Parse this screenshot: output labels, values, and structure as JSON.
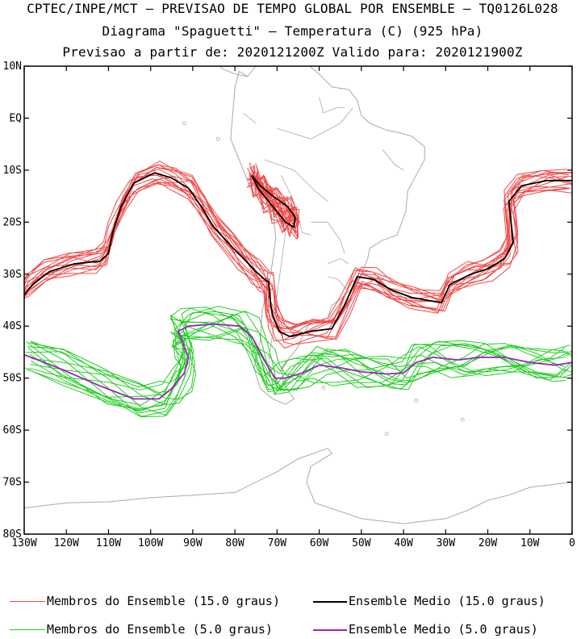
{
  "title": {
    "line1": "CPTEC/INPE/MCT – PREVISAO DE TEMPO GLOBAL POR ENSEMBLE – TQ0126L028",
    "line2": "Diagrama \"Spaguetti\" – Temperatura (C) (925 hPa)",
    "line3": "Previsao a partir de: 2020121200Z  Valido para: 2020121900Z"
  },
  "map": {
    "lon_range": [
      -130,
      0
    ],
    "lat_range": [
      -80,
      10
    ],
    "lon_ticks": [
      "130W",
      "120W",
      "110W",
      "100W",
      "90W",
      "80W",
      "70W",
      "60W",
      "50W",
      "40W",
      "30W",
      "20W",
      "10W",
      "0"
    ],
    "lat_ticks": [
      "10N",
      "EQ",
      "10S",
      "20S",
      "30S",
      "40S",
      "50S",
      "60S",
      "70S",
      "80S"
    ],
    "coastline_color": "#a9a9a9"
  },
  "colors": {
    "members_15": "#f04848",
    "mean_15": "#000000",
    "members_5": "#22cc22",
    "mean_5": "#a020c0"
  },
  "legend": {
    "members_15_label": "Membros do Ensemble (15.0 graus)",
    "mean_15_label": "Ensemble Medio (15.0 graus)",
    "members_5_label": "Membros do Ensemble (5.0 graus)",
    "mean_5_label": "Ensemble Medio (5.0 graus)"
  },
  "chart_data": {
    "type": "line",
    "contours": [
      {
        "series": "mean_15",
        "points": [
          [
            -130,
            -34
          ],
          [
            -128,
            -32
          ],
          [
            -124,
            -29.5
          ],
          [
            -118,
            -28
          ],
          [
            -112,
            -27.5
          ],
          [
            -110,
            -26
          ],
          [
            -109,
            -22
          ],
          [
            -107,
            -17
          ],
          [
            -104,
            -12.5
          ],
          [
            -99,
            -10.5
          ],
          [
            -95,
            -11.5
          ],
          [
            -91,
            -13.5
          ],
          [
            -88,
            -17
          ],
          [
            -85,
            -21
          ],
          [
            -81,
            -24.5
          ],
          [
            -78,
            -27
          ],
          [
            -75,
            -29.5
          ],
          [
            -73,
            -31
          ],
          [
            -72,
            -31.5
          ],
          [
            -71.5,
            -36
          ],
          [
            -71,
            -38
          ],
          [
            -69.5,
            -41
          ],
          [
            -67,
            -42
          ],
          [
            -62,
            -41
          ],
          [
            -57,
            -40.5
          ],
          [
            -54,
            -36
          ],
          [
            -51,
            -30.5
          ],
          [
            -47,
            -31
          ],
          [
            -43,
            -33
          ],
          [
            -38,
            -34.5
          ],
          [
            -31,
            -35.5
          ],
          [
            -29,
            -32
          ],
          [
            -24,
            -30
          ],
          [
            -20,
            -29
          ],
          [
            -16,
            -27
          ],
          [
            -14,
            -24
          ],
          [
            -14.5,
            -20
          ],
          [
            -15,
            -16
          ],
          [
            -12,
            -13
          ],
          [
            -6,
            -12
          ],
          [
            0,
            -12
          ]
        ]
      },
      {
        "series": "mean_15",
        "points": [
          [
            -76,
            -11
          ],
          [
            -74,
            -13
          ],
          [
            -71,
            -15
          ],
          [
            -67.5,
            -17
          ],
          [
            -65.7,
            -19
          ],
          [
            -66,
            -21
          ],
          [
            -68,
            -20
          ],
          [
            -70,
            -18
          ],
          [
            -72,
            -16
          ],
          [
            -74.5,
            -13.5
          ],
          [
            -76,
            -11
          ]
        ]
      },
      {
        "series": "mean_5",
        "points": [
          [
            -130,
            -45.5
          ],
          [
            -122,
            -48
          ],
          [
            -112,
            -51.5
          ],
          [
            -104,
            -54
          ],
          [
            -98,
            -54
          ],
          [
            -95,
            -52
          ],
          [
            -92,
            -49
          ],
          [
            -91,
            -46
          ],
          [
            -92.5,
            -43
          ],
          [
            -93.5,
            -41
          ],
          [
            -91,
            -40
          ],
          [
            -85,
            -39.6
          ],
          [
            -79,
            -40
          ],
          [
            -76,
            -42
          ],
          [
            -74,
            -45
          ],
          [
            -72,
            -48
          ],
          [
            -70.5,
            -50
          ],
          [
            -68,
            -50
          ],
          [
            -64,
            -49
          ],
          [
            -60,
            -47.5
          ],
          [
            -55,
            -48
          ],
          [
            -50,
            -48.8
          ],
          [
            -44,
            -49.2
          ],
          [
            -40,
            -49
          ],
          [
            -37,
            -47
          ],
          [
            -33,
            -46
          ],
          [
            -27,
            -46.5
          ],
          [
            -22,
            -46
          ],
          [
            -16,
            -46
          ],
          [
            -10,
            -47
          ],
          [
            -4,
            -47.5
          ],
          [
            0,
            -47
          ]
        ]
      }
    ],
    "ensemble_member_contours": [
      {
        "series": "members_15",
        "perturbation_amplitude_deg": 2.0,
        "count": 14
      },
      {
        "series": "members_5",
        "perturbation_amplitude_deg": 3.0,
        "count": 14
      }
    ]
  }
}
